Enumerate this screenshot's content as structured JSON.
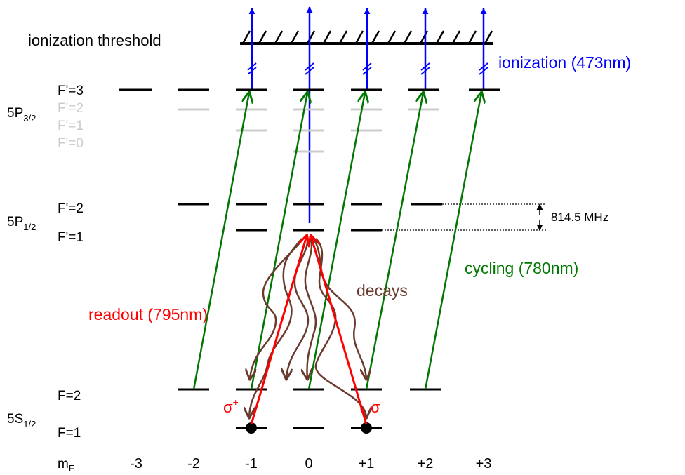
{
  "title": "ionization threshold",
  "colors": {
    "level": "#000000",
    "faded": "#cccccc",
    "ionization": "#0000ff",
    "cycling": "#007700",
    "readout": "#ff0000",
    "decay": "#6b3a2e",
    "dot": "#000000"
  },
  "manifolds": {
    "p32": {
      "main": "5P",
      "sub": "3/2"
    },
    "p12": {
      "main": "5P",
      "sub": "1/2"
    },
    "s12": {
      "main": "5S",
      "sub": "1/2"
    }
  },
  "levels": {
    "p32_f3": "F'=3",
    "p32_f2": "F'=2",
    "p32_f1": "F'=1",
    "p32_f0": "F'=0",
    "p12_f2": "F'=2",
    "p12_f1": "F'=1",
    "s12_f2": "F=2",
    "s12_f1": "F=1"
  },
  "mf_axis": {
    "label_main": "m",
    "label_sub": "F",
    "ticks": [
      "-3",
      "-2",
      "-1",
      "0",
      "+1",
      "+2",
      "+3"
    ]
  },
  "labels": {
    "ionization": "ionization (473nm)",
    "cycling": "cycling (780nm)",
    "readout": "readout (795nm)",
    "decays": "decays",
    "splitting": "814.5 MHz",
    "sigma_plus": {
      "main": "σ",
      "sup": "+"
    },
    "sigma_minus": {
      "main": "σ",
      "sup": "-"
    }
  }
}
